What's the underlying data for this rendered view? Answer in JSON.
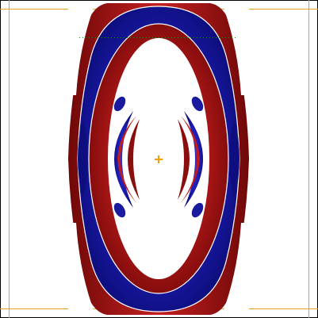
{
  "viewer": {
    "background": "#ffffff",
    "frame_color": "#000000",
    "bounds_color": "#e8a020",
    "guide_color": "#2a8a2a",
    "crosshair_color": "#f5a000"
  },
  "isosurface": {
    "positive_color": "#a81010",
    "negative_color": "#1818a8",
    "highlight_positive": "#e03030",
    "highlight_negative": "#3a3ad8",
    "edge_color": "#ffffff"
  }
}
